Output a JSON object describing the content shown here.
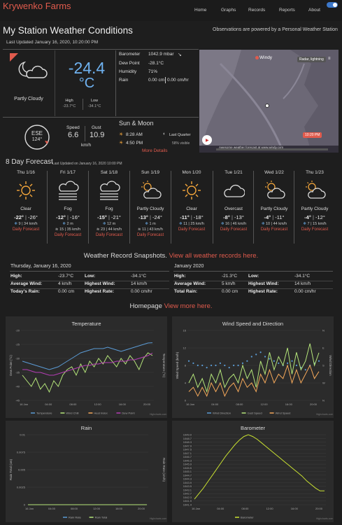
{
  "nav": {
    "brand": "Krywenko Farms",
    "links": [
      "Home",
      "Graphs",
      "Records",
      "Reports",
      "About"
    ]
  },
  "header": {
    "title": "My Station Weather Conditions",
    "powered": "Observations are powered by a Personal Weather Station",
    "updated": "Last Updated January 16, 2020, 10:20:00 PM"
  },
  "current": {
    "temp": "-24.4",
    "unit": "°C",
    "condition": "Partly Cloudy",
    "high_label": "High",
    "high": "-23.7°C",
    "low_label": "Low",
    "low": "-34.1°C",
    "barometer_label": "Barometer",
    "barometer": "1042.9 mbar",
    "dewpoint_label": "Dew Point",
    "dewpoint": "-28.1°C",
    "humidity_label": "Humidity",
    "humidity": "71%",
    "rain_label": "Rain",
    "rain": "0.00 cm",
    "rain_rate": "0.00 cm/hr"
  },
  "wind": {
    "dir": "ESE",
    "deg": "124°",
    "speed_label": "Speed",
    "speed": "6.6",
    "gust_label": "Gust",
    "gust": "10.9",
    "unit": "km/h"
  },
  "sun": {
    "title": "Sun & Moon",
    "sunrise": "8:28 AM",
    "sunset": "4:50 PM",
    "moon": "Last Quarter",
    "moon_pct": "58% visible",
    "more": "More Details"
  },
  "map": {
    "brand": "Windy",
    "layer": "Radar, lightning",
    "time": "10:20 PM",
    "footer": "Awesome weather forecast at www.windy.com"
  },
  "forecast": {
    "title": "8 Day Forecast",
    "updated": "Last Updated on January 16, 2020 10:00 PM",
    "link": "Daily Forecast",
    "days": [
      {
        "day": "Thu 1/16",
        "icon": "sun",
        "cond": "Clear",
        "hi": "-22°",
        "lo": "-26°",
        "wind": "9 | 34 km/h"
      },
      {
        "day": "Fri 1/17",
        "icon": "fog",
        "cond": "Fog",
        "hi": "-12°",
        "lo": "-16°",
        "wind": "2 m",
        "wind2": "15 | 35 km/h"
      },
      {
        "day": "Sat 1/18",
        "icon": "fog",
        "cond": "Fog",
        "hi": "-15°",
        "lo": "-21°",
        "wind": "12 m",
        "wind2": "23 | 44 km/h"
      },
      {
        "day": "Sun 1/19",
        "icon": "partly",
        "cond": "Partly Cloudy",
        "hi": "-13°",
        "lo": "-24°",
        "wind": "1 m",
        "wind2": "11 | 43 km/h"
      },
      {
        "day": "Mon 1/20",
        "icon": "sun",
        "cond": "Clear",
        "hi": "-11°",
        "lo": "-18°",
        "wind": "11 | 25 km/h"
      },
      {
        "day": "Tue 1/21",
        "icon": "overcast",
        "cond": "Overcast",
        "hi": "-8°",
        "lo": "-13°",
        "wind": "16 | 46 km/h"
      },
      {
        "day": "Wed 1/22",
        "icon": "partly",
        "cond": "Partly Cloudy",
        "hi": "-4°",
        "lo": "-11°",
        "wind": "10 | 44 km/h"
      },
      {
        "day": "Thu 1/23",
        "icon": "partly",
        "cond": "Partly Cloudy",
        "hi": "-4°",
        "lo": "-12°",
        "wind": "7 | 15 km/h"
      }
    ]
  },
  "records": {
    "head": "Weather Record Snapshots.",
    "head_link": "View all weather records here.",
    "day": {
      "title": "Thursday, January 16, 2020",
      "high_l": "High:",
      "high": "-23.7°C",
      "low_l": "Low:",
      "low": "-34.1°C",
      "avgwind_l": "Average Wind:",
      "avgwind": "4 km/h",
      "hiwind_l": "Highest Wind:",
      "hiwind": "14 km/h",
      "rain_l": "Today's Rain:",
      "rain": "0.00 cm",
      "rate_l": "Highest Rate:",
      "rate": "0.00 cm/hr"
    },
    "month": {
      "title": "January 2020",
      "high_l": "High:",
      "high": "-21.3°C",
      "low_l": "Low:",
      "low": "-34.1°C",
      "avgwind_l": "Average Wind:",
      "avgwind": "5 km/h",
      "hiwind_l": "Highest Wind:",
      "hiwind": "14 km/h",
      "rain_l": "Total Rain:",
      "rain": "0.00 cm",
      "rate_l": "Highest Rate:",
      "rate": "0.00 cm/hr"
    }
  },
  "homepage": {
    "head": "Homepage",
    "link": "View more here."
  },
  "chart_data": [
    {
      "type": "line",
      "title": "Temperature",
      "ylabel": "Dew Point (°C)",
      "y2label": "Temperature (°C)",
      "x_ticks": [
        "16 Jan",
        "04:00",
        "08:00",
        "12:00",
        "16:00",
        "20:00"
      ],
      "y_ticks": [
        "-45",
        "-40",
        "-35",
        "-30",
        "-25",
        "-20"
      ],
      "ylim": [
        -45,
        -20
      ],
      "series": [
        {
          "name": "Temperature",
          "color": "#5b9bd5",
          "values": [
            -31,
            -31.5,
            -32,
            -32.5,
            -33,
            -33.5,
            -34,
            -33.5,
            -33,
            -32,
            -31,
            -30,
            -29,
            -28,
            -27.5,
            -27,
            -26.5,
            -26.5,
            -26.5,
            -26,
            -26.5,
            -27,
            -27.5,
            -27,
            -26.5,
            -26,
            -25.5,
            -25,
            -24.5,
            -24.4
          ]
        },
        {
          "name": "Wind Chill",
          "color": "#b5e67a",
          "values": [
            -36,
            -38,
            -40,
            -37,
            -41,
            -39,
            -42,
            -38,
            -40,
            -36,
            -34,
            -33,
            -36,
            -32,
            -35,
            -31,
            -33,
            -30,
            -32,
            -29,
            -31,
            -33,
            -30,
            -32,
            -29,
            -31,
            -34,
            -30,
            -28,
            -29
          ]
        },
        {
          "name": "Heat Index",
          "color": "#f4a85a",
          "values": []
        },
        {
          "name": "Dew Point",
          "color": "#b53db5",
          "values": [
            -34,
            -34,
            -34.5,
            -35,
            -35,
            -35.5,
            -36,
            -36,
            -35.5,
            -35,
            -34.5,
            -34,
            -33.5,
            -33,
            -32.5,
            -32.5,
            -32,
            -32,
            -31.5,
            -31.5,
            -31.5,
            -31,
            -31,
            -31,
            -30.5,
            -30.5,
            -30,
            -29.5,
            -29,
            -28.1
          ]
        }
      ]
    },
    {
      "type": "line",
      "title": "Wind Speed and Direction",
      "ylabel": "Wind Speed (km/h)",
      "y2label": "Wind Direction",
      "x_ticks": [
        "16 Jan",
        "04:00",
        "08:00",
        "12:00",
        "16:00",
        "20:00"
      ],
      "y_ticks": [
        "0",
        "4",
        "8",
        "12",
        "16"
      ],
      "y2_ticks": [
        "N",
        "W",
        "S",
        "E",
        "N"
      ],
      "ylim": [
        0,
        16
      ],
      "series": [
        {
          "name": "Wind Direction",
          "color": "#5b9bd5",
          "values": [
            9,
            8.5,
            8,
            8,
            7.5,
            8,
            8,
            8.5,
            8,
            7.5,
            8,
            8,
            8.5,
            9,
            10,
            10.5,
            11,
            10,
            9.5,
            9,
            8.5,
            8,
            8.5,
            9,
            8,
            7.5,
            7,
            8,
            8.5,
            9
          ]
        },
        {
          "name": "Gust Speed",
          "color": "#b5e67a",
          "values": [
            4,
            6,
            3,
            5,
            2,
            6,
            4,
            7,
            3,
            5,
            6,
            4,
            8,
            5,
            7,
            3,
            9,
            6,
            11,
            7,
            10,
            8,
            12,
            6,
            11,
            7,
            9,
            13,
            8,
            10.9
          ]
        },
        {
          "name": "Wind Speed",
          "color": "#f4a85a",
          "values": [
            2,
            3,
            1,
            3,
            1,
            4,
            2,
            4,
            1,
            3,
            4,
            2,
            5,
            3,
            4,
            2,
            6,
            4,
            7,
            4,
            6,
            5,
            8,
            4,
            7,
            4,
            6,
            8,
            5,
            6.6
          ]
        }
      ]
    },
    {
      "type": "line",
      "title": "Rain",
      "ylabel": "Rain Total (cm)",
      "y2label": "Rain Rate (cm/h)",
      "x_ticks": [
        "16 Jan",
        "04:00",
        "08:00",
        "12:00",
        "16:00",
        "20:00"
      ],
      "y_ticks": [
        "0",
        "0.0025",
        "0.005",
        "0.0075",
        "0.01"
      ],
      "ylim": [
        0,
        0.01
      ],
      "series": [
        {
          "name": "Rain Rate",
          "color": "#5b9bd5",
          "values": [
            0,
            0,
            0,
            0,
            0,
            0,
            0,
            0,
            0,
            0,
            0,
            0
          ]
        },
        {
          "name": "Rain Total",
          "color": "#b5e67a",
          "values": [
            0,
            0,
            0,
            0,
            0,
            0,
            0,
            0,
            0,
            0,
            0,
            0
          ]
        }
      ]
    },
    {
      "type": "line",
      "title": "Barometer",
      "ylabel": "",
      "x_ticks": [
        "16 Jan",
        "04:00",
        "08:00",
        "12:00",
        "16:00",
        "20:00"
      ],
      "y_ticks": [
        "1041.4",
        "1041.9",
        "1042.3",
        "1042.7",
        "1043.1",
        "1043.5",
        "1043.9",
        "1044.3",
        "1044.7",
        "1045.1",
        "1045.5",
        "1045.9",
        "1046.3",
        "1046.7",
        "1047.1",
        "1047.5",
        "1047.9",
        "1048.3",
        "1048.7",
        "1049.0"
      ],
      "ylim": [
        1041.4,
        1049.0
      ],
      "series": [
        {
          "name": "Barometer",
          "color": "#c8e031",
          "values": [
            1042.0,
            1042.6,
            1043.2,
            1043.9,
            1044.6,
            1045.3,
            1046.0,
            1046.7,
            1047.3,
            1047.9,
            1048.4,
            1048.8,
            1049.0,
            1048.8,
            1048.5,
            1048.1,
            1047.7,
            1047.3,
            1046.9,
            1046.5,
            1046.1,
            1045.7,
            1045.3,
            1044.9,
            1044.5,
            1044.0,
            1043.6,
            1043.2,
            1042.9,
            1042.9
          ]
        }
      ]
    }
  ],
  "chart_credit": "Highcharts.com"
}
